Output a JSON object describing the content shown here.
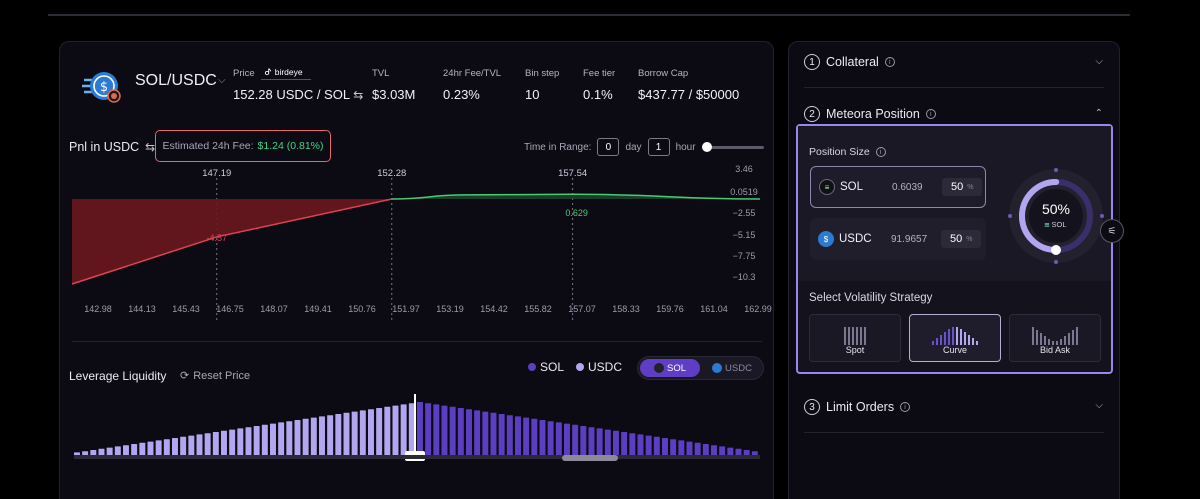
{
  "pair": {
    "name": "SOL/USDC",
    "caret": "⌵"
  },
  "stats": {
    "price": {
      "label": "Price",
      "source": "birdeye",
      "value": "152.28 USDC / SOL"
    },
    "tvl": {
      "label": "TVL",
      "value": "$3.03M"
    },
    "fee_tvl": {
      "label": "24hr Fee/TVL",
      "value": "0.23%"
    },
    "bin_step": {
      "label": "Bin step",
      "value": "10"
    },
    "fee_tier": {
      "label": "Fee tier",
      "value": "0.1%"
    },
    "borrow_cap": {
      "label": "Borrow Cap",
      "value": "$437.77 / $50000"
    }
  },
  "pnl": {
    "title": "Pnl in USDC",
    "fee_label": "Estimated 24h Fee:",
    "fee_value": "$1.24 (0.81%)",
    "time_label": "Time in Range:",
    "days": "0",
    "day_unit": "day",
    "hours": "1",
    "hour_unit": "hour"
  },
  "chart_data": {
    "type": "area",
    "title": "Pnl in USDC",
    "x_ticks": [
      "142.98",
      "144.13",
      "145.43",
      "146.75",
      "148.07",
      "149.41",
      "150.76",
      "151.97",
      "153.19",
      "154.42",
      "155.82",
      "157.07",
      "158.33",
      "159.76",
      "161.04",
      "162.99"
    ],
    "y_ticks": [
      "3.46",
      "0.0519",
      "−2.55",
      "−5.15",
      "−7.75",
      "−10.3"
    ],
    "markers": [
      {
        "price": "147.19",
        "pnl_label": "-4.57"
      },
      {
        "price": "152.28",
        "pnl_label": ""
      },
      {
        "price": "157.54",
        "pnl_label": "0.629"
      }
    ],
    "series": [
      {
        "x": [
          142.98,
          147.19,
          152.28,
          154.42,
          157.54,
          162.99
        ],
        "y": [
          -10.3,
          -4.57,
          0.05,
          0.55,
          0.629,
          0.05
        ]
      }
    ],
    "colors": {
      "loss": "#e0434f",
      "profit": "#4cc878"
    }
  },
  "leverage": {
    "title": "Leverage Liquidity",
    "reset": "Reset Price",
    "legend": [
      "SOL",
      "USDC"
    ],
    "toggle": [
      "SOL",
      "USDC"
    ],
    "bars_usdc": [
      3,
      4,
      5,
      6,
      7,
      8,
      9,
      10,
      11,
      12,
      13,
      14,
      15,
      16,
      17,
      18,
      19,
      20,
      21,
      22,
      23,
      24,
      25,
      26,
      27,
      28,
      29,
      30,
      31,
      32,
      33,
      34,
      35,
      36,
      37,
      38,
      39,
      40,
      41,
      42,
      43,
      44
    ],
    "bars_sol": [
      45,
      44,
      43,
      42,
      41,
      40,
      39,
      38,
      37,
      36,
      35,
      34,
      33,
      32,
      31,
      30,
      29,
      28,
      27,
      26,
      25,
      24,
      23,
      22,
      21,
      20,
      19,
      18,
      17,
      16,
      15,
      14,
      13,
      12,
      11,
      10,
      9,
      8,
      7,
      6,
      5,
      4
    ],
    "colors": {
      "sol": "#5b3ec2",
      "usdc": "#b3a6f0"
    }
  },
  "right": {
    "collateral": {
      "num": "1",
      "label": "Collateral"
    },
    "meteora": {
      "num": "2",
      "label": "Meteora Position"
    },
    "position_size": "Position Size",
    "tokens": [
      {
        "symbol": "SOL",
        "amount": "0.6039",
        "pct": "50"
      },
      {
        "symbol": "USDC",
        "amount": "91.9657",
        "pct": "50"
      }
    ],
    "pct_unit": "%",
    "ring": {
      "value": "50%",
      "token": "SOL",
      "fraction": 0.5
    },
    "volatility_label": "Select Volatility Strategy",
    "strategies": [
      "Spot",
      "Curve",
      "Bid Ask"
    ],
    "active_strategy": "Curve",
    "limit": {
      "num": "3",
      "label": "Limit Orders"
    }
  }
}
